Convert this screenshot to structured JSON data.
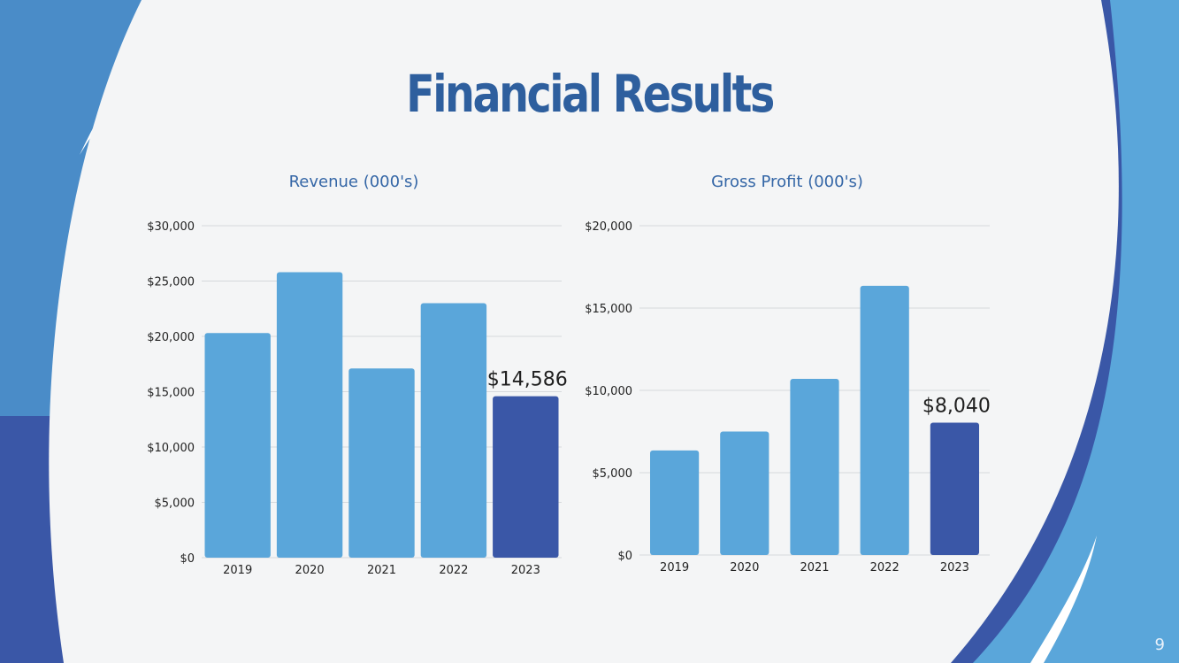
{
  "slide": {
    "title": "Financial Results",
    "page_number": "9"
  },
  "colors": {
    "bar": "#5aa6da",
    "highlight_bar": "#3a57a7",
    "grid": "#d6d9dc",
    "tick_text": "#222222",
    "chart_title": "#3466a6"
  },
  "chart_data": [
    {
      "type": "bar",
      "title": "Revenue (000's)",
      "categories": [
        "2019",
        "2020",
        "2021",
        "2022",
        "2023"
      ],
      "values": [
        20300,
        25800,
        17100,
        23000,
        14586
      ],
      "ylim": [
        0,
        30000
      ],
      "yticks": [
        0,
        5000,
        10000,
        15000,
        20000,
        25000,
        30000
      ],
      "ytick_labels": [
        "$0",
        "$5,000",
        "$10,000",
        "$15,000",
        "$20,000",
        "$25,000",
        "$30,000"
      ],
      "highlight_index": 4,
      "data_label": "$14,586",
      "grid": true
    },
    {
      "type": "bar",
      "title": "Gross Profit (000's)",
      "categories": [
        "2019",
        "2020",
        "2021",
        "2022",
        "2023"
      ],
      "values": [
        6350,
        7500,
        10700,
        16350,
        8040
      ],
      "ylim": [
        0,
        20000
      ],
      "yticks": [
        0,
        5000,
        10000,
        15000,
        20000
      ],
      "ytick_labels": [
        "$0",
        "$5,000",
        "$10,000",
        "$15,000",
        "$20,000"
      ],
      "highlight_index": 4,
      "data_label": "$8,040",
      "grid": true
    }
  ]
}
